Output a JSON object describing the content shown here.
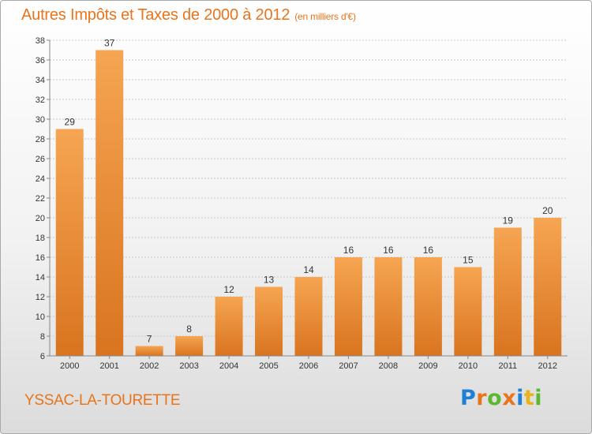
{
  "title": "Autres Impôts et Taxes de 2000 à 2012",
  "subtitle": "(en milliers d'€)",
  "commune": "YSSAC-LA-TOURETTE",
  "logo": {
    "text": "Proxiti",
    "letters": [
      {
        "ch": "P",
        "color": "#1e7fd6"
      },
      {
        "ch": "r",
        "color": "#e8741c"
      },
      {
        "ch": "o",
        "color": "#5cb82e"
      },
      {
        "ch": "x",
        "color": "#e8741c"
      },
      {
        "ch": "i",
        "color": "#1e7fd6"
      },
      {
        "ch": "t",
        "color": "#e8b41c"
      },
      {
        "ch": "i",
        "color": "#5cb82e"
      }
    ]
  },
  "colors": {
    "accent": "#e8741c",
    "bar_top": "#f6a552",
    "bar_bottom": "#d9741f",
    "grid": "#c8c8c8"
  },
  "chart_data": {
    "type": "bar",
    "categories": [
      "2000",
      "2001",
      "2002",
      "2003",
      "2004",
      "2005",
      "2006",
      "2007",
      "2008",
      "2009",
      "2010",
      "2011",
      "2012"
    ],
    "values": [
      29,
      37,
      7,
      8,
      12,
      13,
      14,
      16,
      16,
      16,
      15,
      19,
      20
    ],
    "data_labels": [
      "29",
      "37",
      "7",
      "8",
      "12",
      "13",
      "14",
      "16",
      "16",
      "16",
      "15",
      "19",
      "20"
    ],
    "ylim": [
      6,
      38
    ],
    "yticks": [
      6,
      8,
      10,
      12,
      14,
      16,
      18,
      20,
      22,
      24,
      26,
      28,
      30,
      32,
      34,
      36,
      38
    ],
    "grid": true,
    "legend": false
  }
}
